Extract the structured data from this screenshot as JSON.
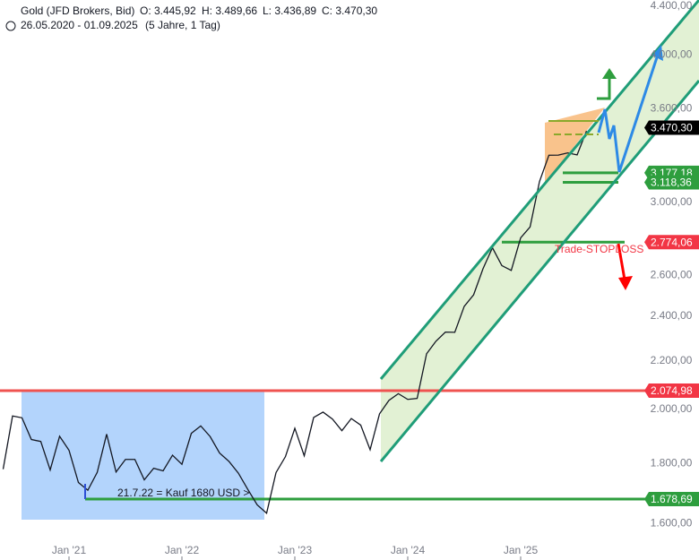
{
  "chart_data": {
    "type": "line",
    "title": "Gold (JFD Brokers, Bid)",
    "ohlc": [
      "O: 3.445,92",
      "H: 3.489,66",
      "L: 3.436,89",
      "C: 3.470,30"
    ],
    "range": "26.05.2020 - 01.09.2025",
    "period": "(5 Jahre, 1 Tag)",
    "annotations": [
      "21.7.22 = Kauf 1680 USD >",
      "Trade-STOPLOSS"
    ],
    "log_scale": true,
    "color": "#131722",
    "categories": [
      null,
      null,
      null,
      null,
      null,
      null,
      null,
      "Jan '21",
      null,
      null,
      null,
      null,
      null,
      null,
      null,
      null,
      null,
      null,
      null,
      "Jan '22",
      null,
      null,
      null,
      null,
      null,
      null,
      null,
      null,
      null,
      null,
      null,
      "Jan '23",
      null,
      null,
      null,
      null,
      null,
      null,
      null,
      null,
      null,
      null,
      null,
      "Jan '24",
      null,
      null,
      null,
      null,
      null,
      null,
      null,
      null,
      null,
      null,
      null,
      "Jan '25",
      null,
      null,
      null,
      null,
      null,
      null,
      null
    ],
    "values": [
      1780,
      1975,
      1968,
      1886,
      1879,
      1777,
      1898,
      1847,
      1734,
      1708,
      1769,
      1906,
      1770,
      1814,
      1814,
      1743,
      1783,
      1774,
      1829,
      1797,
      1909,
      1937,
      1897,
      1837,
      1807,
      1766,
      1711,
      1660,
      1633,
      1768,
      1824,
      1928,
      1827,
      1969,
      1990,
      1963,
      1919,
      1965,
      1940,
      1849,
      1983,
      2036,
      2063,
      2040,
      2044,
      2230,
      2286,
      2327,
      2326,
      2447,
      2503,
      2634,
      2744,
      2650,
      2625,
      2798,
      2858,
      3123,
      3288,
      3289,
      3303,
      3290,
      3448
    ],
    "ylim": [
      1557,
      4454
    ],
    "yticks": [
      {
        "value": 1600,
        "label": "1.600,00"
      },
      {
        "value": 1800,
        "label": "1.800,00"
      },
      {
        "value": 2000,
        "label": "2.000,00"
      },
      {
        "value": 2200,
        "label": "2.200,00"
      },
      {
        "value": 2400,
        "label": "2.400,00"
      },
      {
        "value": 2600,
        "label": "2.600,00"
      },
      {
        "value": 3000,
        "label": "3.000,00"
      },
      {
        "value": 3600,
        "label": "3.600,00"
      },
      {
        "value": 4000,
        "label": "4.000,00"
      },
      {
        "value": 4400,
        "label": "4.400,00"
      }
    ],
    "levels": [
      {
        "value": 3177.18,
        "label": "3.177,18",
        "color": "#2e9e3e"
      },
      {
        "value": 3118.36,
        "label": "3.118,36",
        "color": "#2e9e3e"
      },
      {
        "value": 2774.06,
        "label": "2.774,06",
        "color": "#f23645"
      },
      {
        "value": 2074.98,
        "label": "2.074,98",
        "color": "#f23645"
      },
      {
        "value": 1678.69,
        "label": "1.678,69",
        "color": "#2e9e3e"
      },
      {
        "value": 3470.3,
        "label": "3.470,30",
        "color": "#000000"
      }
    ]
  }
}
